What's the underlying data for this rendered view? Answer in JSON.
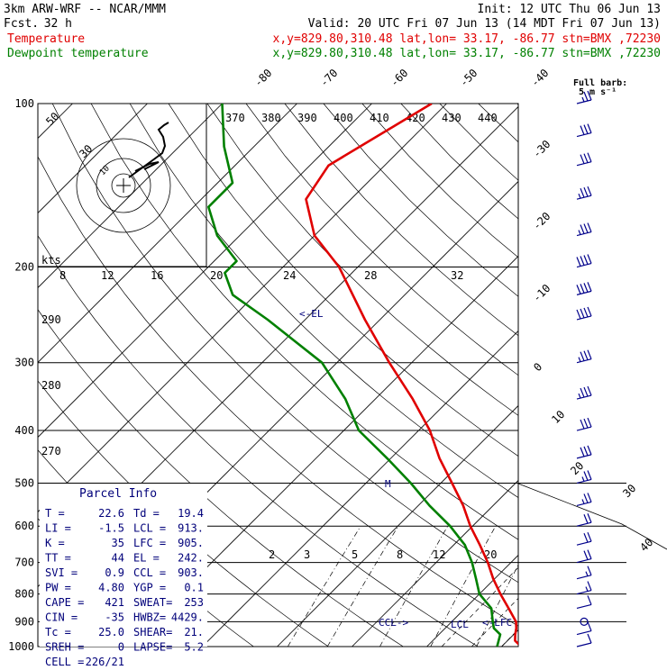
{
  "header": {
    "model": "3km ARW-WRF -- NCAR/MMM",
    "init": "Init: 12 UTC Thu 06 Jun 13",
    "fcst_label": "Fcst.",
    "fcst_value": "32 h",
    "valid": "Valid: 20 UTC Fri 07 Jun 13 (14 MDT Fri 07 Jun 13)",
    "temp_label": "Temperature",
    "temp_loc": "x,y=829.80,310.48   lat,lon= 33.17, -86.77  stn=BMX ,72230",
    "dew_label": "Dewpoint temperature",
    "dew_loc": "x,y=829.80,310.48   lat,lon= 33.17, -86.77  stn=BMX ,72230"
  },
  "colors": {
    "temperature": "#e00000",
    "dewpoint": "#008000",
    "parcel_text": "#00007a",
    "wind": "#00008b"
  },
  "barb_legend": {
    "title": "Full barb:",
    "value": "5 m s⁻¹"
  },
  "hodograph": {
    "units": "kts",
    "ring_labels": [
      "50",
      "30",
      "10"
    ],
    "speed_ticks": [
      "8",
      "12",
      "16",
      "20",
      "24",
      "28",
      "32"
    ]
  },
  "parcel_info": {
    "title": "Parcel Info",
    "rows": [
      {
        "l": "T  =",
        "lv": "22.6",
        "r": "Td =",
        "rv": "19.4"
      },
      {
        "l": "LI =",
        "lv": "-1.5",
        "r": "LCL =",
        "rv": "913."
      },
      {
        "l": "K  =",
        "lv": "35",
        "r": "LFC =",
        "rv": "905."
      },
      {
        "l": "TT =",
        "lv": "44",
        "r": "EL  =",
        "rv": "242."
      },
      {
        "l": "SVI =",
        "lv": "0.9",
        "r": "CCL =",
        "rv": "903."
      },
      {
        "l": "PW =",
        "lv": "4.80",
        "r": "YGP =",
        "rv": "0.1"
      },
      {
        "l": "CAPE =",
        "lv": "421",
        "r": "SWEAT=",
        "rv": "253"
      },
      {
        "l": "CIN =",
        "lv": "-35",
        "r": "HWBZ=",
        "rv": "4429."
      },
      {
        "l": "Tc =",
        "lv": "25.0",
        "r": "SHEAR=",
        "rv": "21."
      },
      {
        "l": "SREH =",
        "lv": "0",
        "r": "LAPSE=",
        "rv": "5.2"
      },
      {
        "l": "CELL =",
        "lv": "226/21",
        "r": "",
        "rv": ""
      }
    ]
  },
  "level_labels": {
    "el": "<-EL",
    "lcl": "LCL",
    "lfc": "<-LFC",
    "ccl": "CCL->",
    "m": "M"
  },
  "chart_data": {
    "type": "line",
    "title": "",
    "y_axis": {
      "scale": "log",
      "ticks": [
        100,
        200,
        300,
        400,
        500,
        600,
        700,
        800,
        900,
        1000
      ]
    },
    "isotherm_labels": [
      "-80",
      "-70",
      "-60",
      "-50",
      "-40",
      "-30",
      "-20",
      "-10",
      "0",
      "10",
      "20",
      "30",
      "40"
    ],
    "theta_labels": [
      "370",
      "380",
      "390",
      "400",
      "410",
      "420",
      "430",
      "440",
      "290",
      "280",
      "270"
    ],
    "mixing_ratio_labels": [
      "2",
      "3",
      "5",
      "8",
      "12",
      "20"
    ],
    "series": [
      {
        "name": "Temperature",
        "points": [
          [
            1000,
            22.6
          ],
          [
            975,
            21.0
          ],
          [
            950,
            20.2
          ],
          [
            925,
            19.5
          ],
          [
            900,
            18.6
          ],
          [
            850,
            15.8
          ],
          [
            800,
            12.8
          ],
          [
            750,
            9.8
          ],
          [
            700,
            6.9
          ],
          [
            650,
            3.5
          ],
          [
            600,
            -0.3
          ],
          [
            550,
            -4.0
          ],
          [
            500,
            -8.5
          ],
          [
            450,
            -13.5
          ],
          [
            400,
            -18.5
          ],
          [
            350,
            -25.0
          ],
          [
            300,
            -33.0
          ],
          [
            250,
            -42.0
          ],
          [
            200,
            -52.5
          ],
          [
            175,
            -60.0
          ],
          [
            150,
            -66.0
          ],
          [
            130,
            -67.5
          ],
          [
            110,
            -64.0
          ],
          [
            100,
            -62.0
          ]
        ]
      },
      {
        "name": "Dewpoint temperature",
        "points": [
          [
            1000,
            19.4
          ],
          [
            975,
            18.8
          ],
          [
            950,
            18.2
          ],
          [
            925,
            16.5
          ],
          [
            900,
            15.5
          ],
          [
            850,
            13.5
          ],
          [
            800,
            10.0
          ],
          [
            750,
            7.5
          ],
          [
            700,
            4.8
          ],
          [
            650,
            1.5
          ],
          [
            600,
            -3.0
          ],
          [
            550,
            -8.5
          ],
          [
            500,
            -14.0
          ],
          [
            450,
            -20.5
          ],
          [
            400,
            -28.0
          ],
          [
            350,
            -34.0
          ],
          [
            300,
            -42.0
          ],
          [
            250,
            -55.0
          ],
          [
            225,
            -63.0
          ],
          [
            205,
            -67.0
          ],
          [
            195,
            -67.0
          ],
          [
            175,
            -73.0
          ],
          [
            155,
            -78.0
          ],
          [
            140,
            -78.0
          ],
          [
            120,
            -84.0
          ],
          [
            100,
            -90.0
          ]
        ]
      }
    ],
    "wind_barbs": [
      {
        "p": 1000,
        "kts": 10
      },
      {
        "p": 950,
        "kts": 10
      },
      {
        "p": 900,
        "kts": 0
      },
      {
        "p": 850,
        "kts": 10
      },
      {
        "p": 800,
        "kts": 15
      },
      {
        "p": 750,
        "kts": 15
      },
      {
        "p": 700,
        "kts": 20
      },
      {
        "p": 650,
        "kts": 20
      },
      {
        "p": 600,
        "kts": 20
      },
      {
        "p": 550,
        "kts": 25
      },
      {
        "p": 500,
        "kts": 25
      },
      {
        "p": 450,
        "kts": 30
      },
      {
        "p": 400,
        "kts": 30
      },
      {
        "p": 350,
        "kts": 35
      },
      {
        "p": 300,
        "kts": 35
      },
      {
        "p": 250,
        "kts": 40
      },
      {
        "p": 225,
        "kts": 40
      },
      {
        "p": 200,
        "kts": 40
      },
      {
        "p": 175,
        "kts": 35
      },
      {
        "p": 150,
        "kts": 35
      },
      {
        "p": 130,
        "kts": 30
      },
      {
        "p": 115,
        "kts": 30
      },
      {
        "p": 100,
        "kts": 25
      }
    ]
  }
}
